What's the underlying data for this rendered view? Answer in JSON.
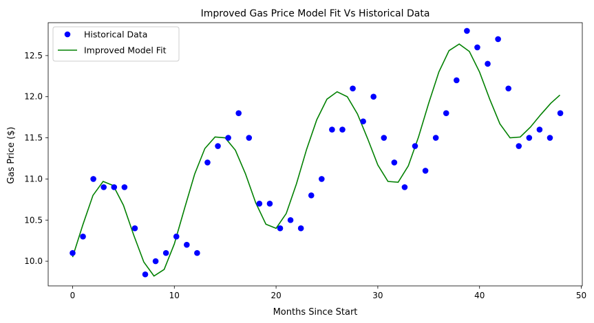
{
  "chart_data": {
    "type": "scatter",
    "title": "Improved Gas Price Model Fit Vs Historical Data",
    "xlabel": "Months Since Start",
    "ylabel": "Gas Price ($)",
    "xlim": [
      -2.4,
      50.1
    ],
    "ylim": [
      9.7,
      12.9
    ],
    "xticks": [
      0,
      10,
      20,
      30,
      40,
      50
    ],
    "yticks": [
      10.0,
      10.5,
      11.0,
      11.5,
      12.0,
      12.5
    ],
    "legend_position": "top-left",
    "grid": false,
    "series": [
      {
        "name": "Historical Data",
        "kind": "scatter",
        "color": "#0000ff",
        "x": [
          0.0,
          1.02,
          2.04,
          3.06,
          4.08,
          5.1,
          6.12,
          7.14,
          8.16,
          9.18,
          10.2,
          11.22,
          12.24,
          13.26,
          14.28,
          15.3,
          16.32,
          17.34,
          18.36,
          19.38,
          20.4,
          21.42,
          22.44,
          23.46,
          24.48,
          25.5,
          26.52,
          27.54,
          28.56,
          29.58,
          30.6,
          31.62,
          32.64,
          33.66,
          34.68,
          35.7,
          36.72,
          37.74,
          38.76,
          39.78,
          40.8,
          41.82,
          42.84,
          43.86,
          44.88,
          45.9,
          46.92,
          47.94
        ],
        "y": [
          10.1,
          10.3,
          11.0,
          10.9,
          10.9,
          10.9,
          10.4,
          9.84,
          10.0,
          10.1,
          10.3,
          10.2,
          10.1,
          11.2,
          11.4,
          11.5,
          11.8,
          11.5,
          10.7,
          10.7,
          10.4,
          10.5,
          10.4,
          10.8,
          11.0,
          11.6,
          11.6,
          12.1,
          11.7,
          12.0,
          11.5,
          11.2,
          10.9,
          11.4,
          11.1,
          11.5,
          11.8,
          12.2,
          12.8,
          12.6,
          12.4,
          12.7,
          12.1,
          11.4,
          11.5,
          11.6,
          11.5,
          11.8
        ]
      },
      {
        "name": "Improved Model Fit",
        "kind": "line",
        "color": "#008000",
        "x": [
          0,
          1,
          2,
          3,
          4,
          5,
          6,
          7,
          8,
          9,
          10,
          11,
          12,
          13,
          14,
          15,
          16,
          17,
          18,
          19,
          20,
          21,
          22,
          23,
          24,
          25,
          26,
          27,
          28,
          29,
          30,
          31,
          32,
          33,
          34,
          35,
          36,
          37,
          38,
          39,
          40,
          41,
          42,
          43,
          44,
          45,
          46,
          47,
          47.9
        ],
        "y": [
          10.05,
          10.44,
          10.8,
          10.97,
          10.92,
          10.68,
          10.32,
          9.99,
          9.82,
          9.9,
          10.21,
          10.64,
          11.06,
          11.37,
          11.51,
          11.5,
          11.35,
          11.06,
          10.71,
          10.45,
          10.4,
          10.58,
          10.94,
          11.36,
          11.72,
          11.97,
          12.06,
          12.0,
          11.79,
          11.49,
          11.17,
          10.97,
          10.96,
          11.16,
          11.51,
          11.92,
          12.3,
          12.56,
          12.64,
          12.55,
          12.3,
          11.97,
          11.67,
          11.5,
          11.51,
          11.63,
          11.78,
          11.92,
          12.02
        ]
      }
    ]
  }
}
